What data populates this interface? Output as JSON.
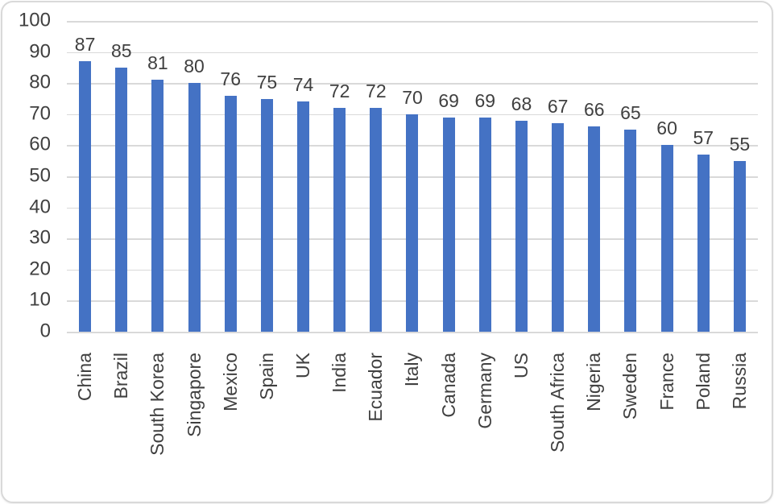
{
  "chart_data": {
    "type": "bar",
    "title": "",
    "categories": [
      "China",
      "Brazil",
      "South Korea",
      "Singapore",
      "Mexico",
      "Spain",
      "UK",
      "India",
      "Ecuador",
      "Italy",
      "Canada",
      "Germany",
      "US",
      "South Africa",
      "Nigeria",
      "Sweden",
      "France",
      "Poland",
      "Russia"
    ],
    "values": [
      87,
      85,
      81,
      80,
      76,
      75,
      74,
      72,
      72,
      70,
      69,
      69,
      68,
      67,
      66,
      65,
      60,
      57,
      55
    ],
    "ylim": [
      0,
      100
    ],
    "yticks": [
      0,
      10,
      20,
      30,
      40,
      50,
      60,
      70,
      80,
      90,
      100
    ],
    "xlabel": "",
    "ylabel": "",
    "grid": "horizontal",
    "legend": "none",
    "data_labels": "outside-end",
    "x_label_rotation_degrees": 90,
    "colors": {
      "bar": "#4472c4",
      "gridline": "#d9d9d9",
      "axis_text": "#404040",
      "data_label_text": "#404040",
      "background": "#ffffff",
      "frame_border": "#d9d9d9"
    }
  }
}
